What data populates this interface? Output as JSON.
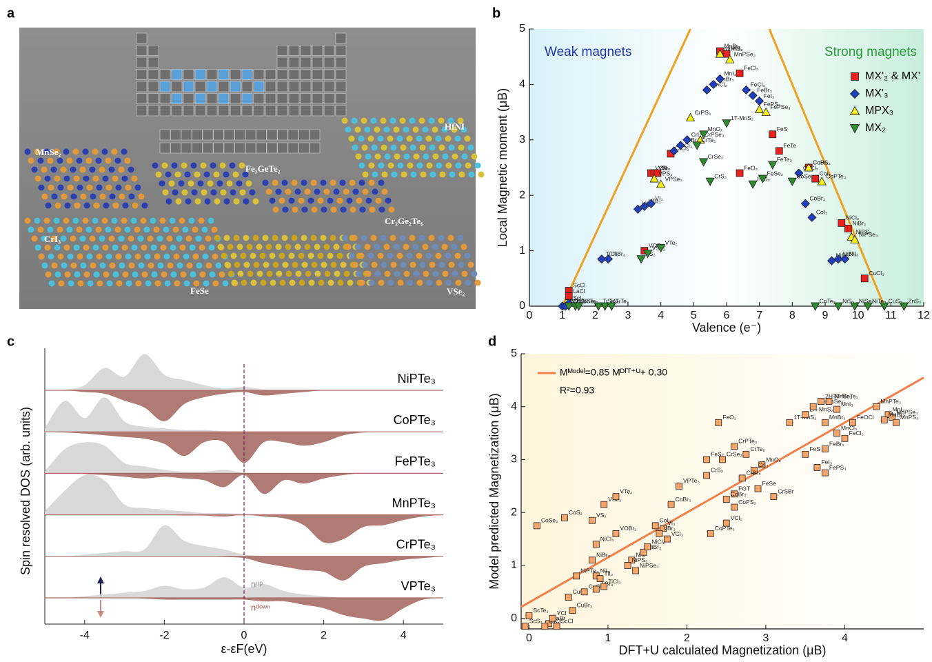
{
  "panel_labels": [
    "a",
    "b",
    "c",
    "d"
  ],
  "panel_a": {
    "labels": [
      "MnSe₂",
      "Fe₃GeTe₂",
      "HfNI",
      "CrI₃",
      "Cr₂Ge₂Te₆",
      "FeSe",
      "VSe₂"
    ]
  },
  "chart_data": [
    {
      "type": "scatter",
      "x_label": "Valence (e⁻)",
      "y_label": "Local Magnetic moment (μB)",
      "annotations": [
        "Weak magnets",
        "Strong magnets"
      ],
      "xlim": [
        0,
        12
      ],
      "ylim": [
        0,
        5
      ],
      "xticks": [
        0,
        1,
        2,
        3,
        4,
        5,
        6,
        7,
        8,
        9,
        10,
        11,
        12
      ],
      "yticks": [
        0,
        1,
        2,
        3,
        4,
        5
      ],
      "legend": "upper right",
      "guide_color": "#f0a020",
      "guides": [
        {
          "x": [
            1.0,
            4.9
          ],
          "y": [
            0,
            5
          ]
        },
        {
          "x": [
            7.3,
            10.8
          ],
          "y": [
            5,
            0
          ]
        }
      ],
      "series": [
        {
          "name": "MX'₂ & MX'",
          "color": "#e8231f",
          "marker": "square",
          "x": [
            5.8,
            6.0,
            6.4,
            3.7,
            3.8,
            3.9,
            4.3,
            7.4,
            7.6,
            6.4,
            8.5,
            8.7,
            9.5,
            9.7,
            10.2,
            1.2,
            1.2,
            3.5
          ],
          "values": [
            4.6,
            4.55,
            4.2,
            2.4,
            2.4,
            2.4,
            2.75,
            3.1,
            2.8,
            2.4,
            2.5,
            2.3,
            1.5,
            1.4,
            0.5,
            0.28,
            0.18,
            1.0
          ],
          "labels": [
            "MnBr₂",
            "MnI₂",
            "FeCl₂",
            "VCl₂",
            "VBr₂",
            "VI₂",
            "CrCl₂",
            "FeS",
            "FeTe",
            "FeO₂",
            "CoBr₂",
            "CoI₂",
            "NiCl₂",
            "NiBr₂",
            "CuCl₂",
            "ScCl",
            "LaCl",
            "VOBr₂"
          ]
        },
        {
          "name": "MX'₃",
          "color": "#1f3fbf",
          "marker": "diamond",
          "x": [
            2.2,
            2.4,
            3.3,
            3.5,
            3.7,
            4.4,
            4.6,
            4.8,
            5.4,
            5.6,
            5.8,
            6.6,
            6.8,
            7.0,
            8.2,
            8.4,
            8.6,
            9.2,
            9.4,
            9.6,
            1.0,
            1.1,
            1.2
          ],
          "values": [
            0.85,
            0.85,
            1.75,
            1.8,
            1.85,
            2.8,
            2.9,
            3.0,
            3.9,
            4.0,
            4.1,
            3.9,
            3.8,
            3.7,
            2.4,
            1.85,
            1.6,
            0.82,
            0.85,
            0.85,
            0.0,
            0.0,
            0.05
          ],
          "labels": [
            "TiCl₃",
            "TiBr₃",
            "VCl₃",
            "VBr₃",
            "VI₃",
            "CrCl₃",
            "CrBr₃",
            "CrI₃",
            "MnCl₃",
            "MnBr₃",
            "MnI₃",
            "FeCl₃",
            "FeBr₃",
            "FeI₃",
            "CoCl₃",
            "CoBr₃",
            "CoI₃",
            "NiCl₃",
            "NiBr₃",
            "NiI₃",
            "ScCl₃",
            "ScBr₃",
            "ScI₃"
          ]
        },
        {
          "name": "MPX₃",
          "color": "#f5ee1a",
          "marker": "triangle",
          "x": [
            4.9,
            5.2,
            5.8,
            6.1,
            7.0,
            7.2,
            8.5,
            8.9,
            9.8,
            9.9,
            3.8,
            4.0
          ],
          "values": [
            3.4,
            3.0,
            4.55,
            4.45,
            3.55,
            3.5,
            2.5,
            2.25,
            1.25,
            1.2,
            2.3,
            2.2
          ],
          "labels": [
            "CrPS₃",
            "CrPSe₃",
            "MnPS₃",
            "MnPSe₃",
            "FePS₃",
            "FePSe₃",
            "CoPS₃",
            "CoPTe₃",
            "NiPS₃",
            "NiPSe₃",
            "VPS₃",
            "VPSe₃"
          ]
        },
        {
          "name": "MX₂",
          "color": "#2e8b2e",
          "marker": "triangle-down",
          "x": [
            3.4,
            3.6,
            4.0,
            5.5,
            5.3,
            5.1,
            5.3,
            6.0,
            6.8,
            7.1,
            7.4,
            8.0,
            8.7,
            9.4,
            9.9,
            10.3,
            2.3,
            2.1,
            2.5,
            1.2,
            1.4,
            1.5,
            10.8,
            11.4
          ],
          "values": [
            0.85,
            0.95,
            1.05,
            2.25,
            2.6,
            2.9,
            3.1,
            3.3,
            2.2,
            2.3,
            2.55,
            2.25,
            0,
            0,
            0,
            0,
            0,
            0,
            0,
            0,
            0,
            0,
            0,
            0
          ],
          "labels": [
            "VS₂",
            "VSe₂",
            "VTe₂",
            "CrS₂",
            "CrSe₂",
            "CrTe₂",
            "MnO₂",
            "1T-MnS₂",
            "FeS₂",
            "FeSe₂",
            "FeTe₂",
            "CoSe₂",
            "CoTe₂",
            "NiS₂",
            "NiSe₂",
            "NiTe₂",
            "TiS₂",
            "TiSe₂",
            "TiTe₂",
            "ScS₂",
            "ScSe₂",
            "ScTe₂",
            "CuS₂",
            "ZnS₂"
          ]
        }
      ]
    },
    {
      "type": "area",
      "x_label": "ε-εF(eV)",
      "y_label": "Spin resolved DOS (arb. units)",
      "xlim": [
        -5,
        5
      ],
      "xticks": [
        -4,
        -2,
        0,
        2,
        4
      ],
      "fermi_level": 0,
      "annotations": [
        "nᵘᵖ",
        "nᵈᵒʷⁿ"
      ],
      "up_color": "#d9d9d9",
      "down_color": "#b07b74",
      "x": [
        -5,
        -4.5,
        -4,
        -3.5,
        -3,
        -2.5,
        -2,
        -1.5,
        -1,
        -0.5,
        0,
        0.5,
        1,
        1.5,
        2,
        2.5,
        3,
        3.5,
        4,
        4.5,
        5
      ],
      "series": [
        {
          "name": "NiPTe₃",
          "up": [
            0,
            0.02,
            0.15,
            0.65,
            0.4,
            1.05,
            0.45,
            0.3,
            0.15,
            0.05,
            0.1,
            0.02,
            0,
            0,
            0,
            0,
            0,
            0,
            0,
            0,
            0
          ],
          "down": [
            0,
            0,
            -0.05,
            -0.1,
            -0.3,
            -0.5,
            -0.9,
            -0.4,
            -0.2,
            -0.1,
            -0.05,
            -0.15,
            -0.1,
            -0.05,
            0,
            0,
            0,
            0,
            0,
            0,
            0
          ]
        },
        {
          "name": "CoPTe₃",
          "up": [
            0.1,
            0.9,
            0.4,
            1.0,
            0.3,
            0.15,
            0.1,
            0.05,
            0.05,
            0.02,
            0,
            0,
            0,
            0,
            0,
            0,
            0,
            0,
            0,
            0,
            0
          ],
          "down": [
            0,
            -0.02,
            -0.05,
            -0.1,
            -0.15,
            -0.2,
            -0.35,
            -0.7,
            -0.3,
            -0.3,
            -0.9,
            -0.3,
            -0.3,
            -0.4,
            -0.3,
            -0.1,
            -0.02,
            0,
            0,
            0,
            0
          ]
        },
        {
          "name": "FePTe₃",
          "up": [
            0.05,
            0.7,
            0.9,
            0.8,
            0.3,
            0.2,
            0.1,
            0.05,
            0.05,
            0.1,
            0.02,
            0,
            0,
            0,
            0,
            0,
            0,
            0,
            0,
            0,
            0
          ],
          "down": [
            0,
            0,
            -0.02,
            -0.05,
            -0.1,
            -0.15,
            -0.1,
            -0.15,
            -0.2,
            -0.4,
            -0.05,
            -0.6,
            -0.2,
            -0.3,
            -0.15,
            -0.05,
            0,
            0,
            0,
            0,
            0
          ]
        },
        {
          "name": "MnPTe₃",
          "up": [
            0.1,
            0.7,
            1.15,
            1.0,
            0.3,
            0.2,
            0.15,
            0.1,
            0.05,
            0.05,
            0.02,
            0,
            0,
            0,
            0,
            0,
            0,
            0,
            0,
            0,
            0
          ],
          "down": [
            0,
            0,
            0,
            0,
            0,
            0,
            0,
            -0.02,
            -0.02,
            -0.05,
            0,
            -0.05,
            -0.1,
            -0.3,
            -0.8,
            -0.7,
            -0.35,
            -0.3,
            -0.15,
            -0.05,
            0
          ]
        },
        {
          "name": "CrPTe₃",
          "up": [
            0,
            0,
            0.05,
            0.1,
            0.15,
            0.2,
            0.9,
            0.45,
            0.3,
            0.2,
            0.05,
            0.02,
            0,
            0,
            0,
            0,
            0,
            0,
            0,
            0,
            0
          ],
          "down": [
            0,
            0,
            0,
            0,
            0,
            0,
            0,
            0,
            0,
            -0.02,
            -0.05,
            -0.2,
            -0.3,
            -0.4,
            -0.45,
            -0.7,
            -0.3,
            -0.2,
            -0.1,
            -0.05,
            0
          ]
        },
        {
          "name": "VPTe₃",
          "up": [
            0,
            0,
            0.05,
            0.1,
            0.15,
            0.2,
            0.35,
            0.25,
            0.3,
            0.6,
            0.3,
            0.4,
            0.2,
            0.1,
            0.05,
            0,
            0,
            0,
            0,
            0,
            0
          ],
          "down": [
            0,
            0,
            0,
            0,
            0,
            -0.02,
            -0.05,
            -0.05,
            -0.05,
            -0.05,
            -0.05,
            -0.1,
            -0.1,
            -0.2,
            -0.3,
            -0.5,
            -0.6,
            -0.65,
            -0.3,
            -0.05,
            0
          ]
        }
      ]
    },
    {
      "type": "scatter",
      "x_label": "DFT+U calculated Magnetization (μB)",
      "y_label": "Model predicted Magnetization (μB)",
      "xlim": [
        -0.1,
        5
      ],
      "ylim": [
        -0.2,
        5
      ],
      "xticks": [
        0,
        1,
        2,
        3,
        4
      ],
      "yticks": [
        0,
        1,
        2,
        3,
        4,
        5
      ],
      "fit": {
        "slope": 0.85,
        "intercept": 0.3,
        "color": "#f07f4a"
      },
      "fit_label": "Mᴹᵒᵈᵉˡ=0.85 Mᴰᶠᵀ⁺ᵁ+ 0.30",
      "r2_label": "R²=0.93",
      "series": [
        {
          "color": "#f5a56a",
          "marker": "square",
          "x": [
            0.0,
            -0.05,
            0.25,
            0.2,
            0.35,
            0.3,
            0.5,
            0.55,
            0.7,
            0.6,
            0.85,
            0.9,
            0.85,
            0.95,
            0.85,
            0.8,
            0.1,
            0.45,
            0.8,
            0.95,
            1.1,
            1.1,
            1.3,
            1.25,
            1.35,
            1.45,
            1.5,
            1.6,
            1.7,
            1.65,
            1.75,
            1.8,
            1.9,
            2.25,
            2.25,
            2.45,
            2.4,
            2.6,
            2.75,
            2.95,
            2.85,
            2.7,
            2.6,
            2.9,
            3.1,
            2.5,
            2.6,
            2.5,
            2.3,
            3.3,
            3.5,
            3.6,
            3.7,
            3.8,
            3.75,
            3.9,
            3.9,
            3.5,
            3.75,
            3.65,
            3.75,
            4.0,
            4.1,
            4.4,
            4.55,
            4.6,
            4.65,
            4.5
          ],
          "values": [
            0.05,
            -0.15,
            -0.1,
            -0.15,
            -0.15,
            0.0,
            0.4,
            0.15,
            0.5,
            0.8,
            0.8,
            0.75,
            0.55,
            0.6,
            1.4,
            1.1,
            1.75,
            1.9,
            1.85,
            2.15,
            2.3,
            1.6,
            1.1,
            1.0,
            0.9,
            1.25,
            1.35,
            1.75,
            1.7,
            1.6,
            1.5,
            2.15,
            2.5,
            2.7,
            3.0,
            3.0,
            3.7,
            3.25,
            3.1,
            2.9,
            2.8,
            2.65,
            2.35,
            2.45,
            2.3,
            2.25,
            2.1,
            1.8,
            1.6,
            3.7,
            3.85,
            4.0,
            4.1,
            4.1,
            3.7,
            3.95,
            3.5,
            3.1,
            3.2,
            2.85,
            2.75,
            3.4,
            3.7,
            4.0,
            3.85,
            3.8,
            3.7,
            3.75
          ],
          "labels": [
            "ScTe₂",
            "ScS₂",
            "LaBr",
            "LaCl",
            "ScCl",
            "YCl",
            "CuCl₂",
            "CuBr₃",
            "CuCl₃",
            "NiPTe₃",
            "NiI₃",
            "TiI₃",
            "TiBr₃",
            "TiCl₃",
            "NiCl₃",
            "NiBr₃",
            "CoSe₂",
            "CoS₂",
            "VS₂",
            "VSe₂",
            "VTe₂",
            "VOBr₂",
            "NiI₂",
            "NiPS₃",
            "NiPSe₃",
            "NiBr₂",
            "NiCl₂",
            "CoI₃",
            "VI₃",
            "VBr₃",
            "VCl₃",
            "CoBr₃",
            "VPTe₃",
            "CrS₂",
            "FeS₂",
            "CrSe₂",
            "FeO₂",
            "CrPTe₃",
            "CrTe₂",
            "MnO₂",
            "CrI₃",
            "CrBr₃",
            "FGT",
            "FeSe",
            "CrSBr",
            "CoBr₂",
            "CoPS₃",
            "VCl₂",
            "CoPTe₃",
            "1T-MnS₂",
            "2H-MnS₂",
            "1T-MnSe₂",
            "2H-MnSe₂",
            "1T-MnTe₂",
            "MnBr₃",
            "MnI₃",
            "MnCl₃",
            "FeS",
            "FeBr₃",
            "FeI₃",
            "FePS₃",
            "FeCl₃",
            "FeOCl",
            "MnPTe₃",
            "MnI₂",
            "MnPSe₃",
            "MnPS₃",
            "MnBr₂"
          ]
        }
      ]
    }
  ]
}
